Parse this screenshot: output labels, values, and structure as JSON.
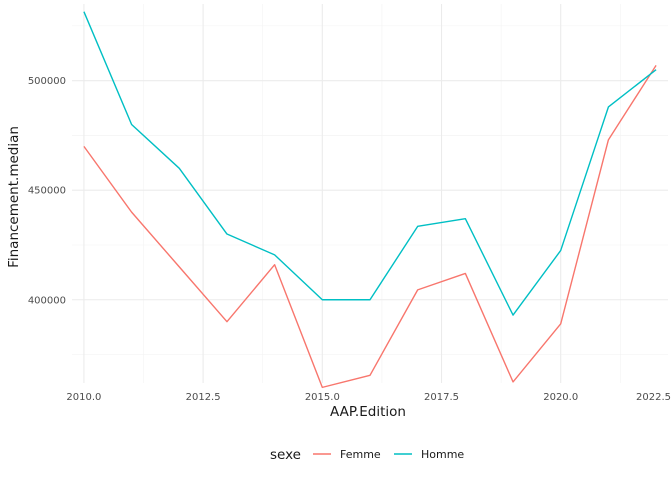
{
  "chart_data": {
    "type": "line",
    "xlabel": "AAP.Edition",
    "ylabel": "Financement.median",
    "x_ticks": [
      "2010.0",
      "2012.5",
      "2015.0",
      "2017.5",
      "2020.0",
      "2022.5"
    ],
    "y_ticks": [
      "400000",
      "450000",
      "500000"
    ],
    "xlim": [
      2009.75,
      2022.25
    ],
    "ylim": [
      362000,
      535000
    ],
    "grid": true,
    "legend": {
      "title": "sexe",
      "position": "bottom"
    },
    "x": [
      2010,
      2011,
      2012,
      2013,
      2014,
      2015,
      2016,
      2017,
      2018,
      2019,
      2020,
      2021,
      2022
    ],
    "series": [
      {
        "name": "Femme",
        "color": "#F8766D",
        "values": [
          470000,
          440000,
          415000,
          390000,
          416000,
          360000,
          365500,
          404500,
          412000,
          362500,
          389000,
          473000,
          507000
        ]
      },
      {
        "name": "Homme",
        "color": "#00BFC4",
        "values": [
          531500,
          480000,
          460000,
          430000,
          420500,
          400000,
          400000,
          433500,
          437000,
          393000,
          422500,
          488000,
          505000
        ]
      }
    ]
  }
}
